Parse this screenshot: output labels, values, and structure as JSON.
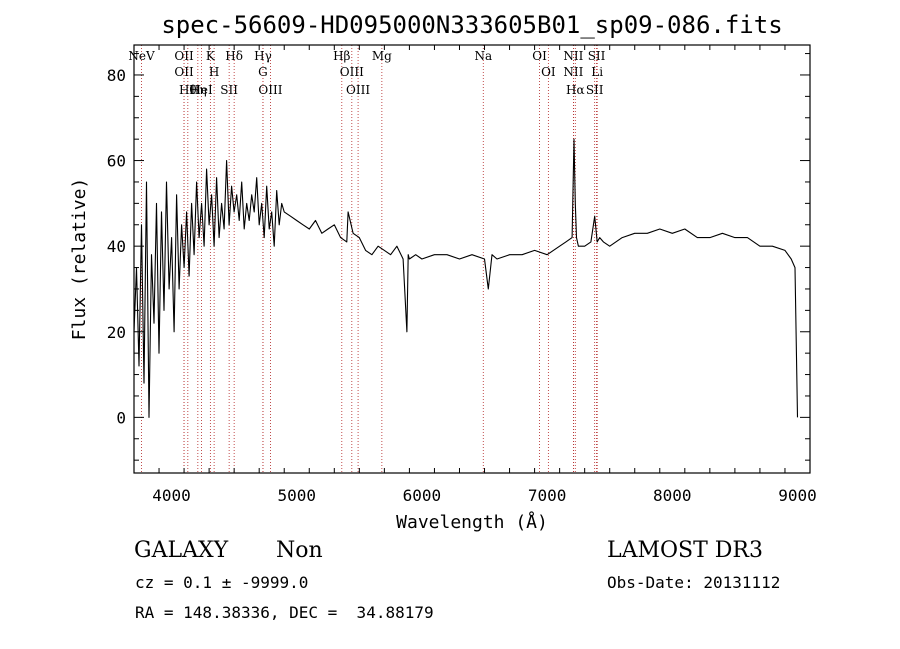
{
  "chart_data": {
    "type": "line",
    "title": "spec-56609-HD095000N333605B01_sp09-086.fits",
    "xlabel": "Wavelength (Å)",
    "ylabel": "Flux (relative)",
    "xlim": [
      3700,
      9100
    ],
    "ylim": [
      -13,
      87
    ],
    "xticks": [
      4000,
      5000,
      6000,
      7000,
      8000,
      9000
    ],
    "xtick_labels": [
      "4000",
      "5000",
      "6000",
      "7000",
      "8000",
      "9000"
    ],
    "yticks": [
      0,
      20,
      40,
      60,
      80
    ],
    "ytick_labels": [
      "0",
      "20",
      "40",
      "60",
      "80"
    ],
    "series": [
      {
        "name": "spectrum",
        "x": [
          3700,
          3720,
          3740,
          3760,
          3780,
          3800,
          3820,
          3840,
          3860,
          3880,
          3900,
          3920,
          3940,
          3960,
          3980,
          4000,
          4020,
          4040,
          4060,
          4080,
          4100,
          4120,
          4140,
          4160,
          4180,
          4200,
          4220,
          4240,
          4260,
          4280,
          4300,
          4320,
          4340,
          4360,
          4380,
          4400,
          4420,
          4440,
          4460,
          4480,
          4500,
          4520,
          4540,
          4560,
          4580,
          4600,
          4620,
          4640,
          4660,
          4680,
          4700,
          4720,
          4740,
          4760,
          4780,
          4800,
          4820,
          4840,
          4860,
          4880,
          4900,
          4950,
          5000,
          5050,
          5100,
          5150,
          5200,
          5250,
          5300,
          5350,
          5400,
          5410,
          5450,
          5500,
          5550,
          5600,
          5650,
          5700,
          5750,
          5800,
          5850,
          5880,
          5890,
          5900,
          5950,
          6000,
          6100,
          6200,
          6300,
          6400,
          6500,
          6530,
          6560,
          6600,
          6700,
          6800,
          6900,
          7000,
          7100,
          7150,
          7200,
          7215,
          7225,
          7235,
          7250,
          7300,
          7350,
          7380,
          7400,
          7420,
          7450,
          7500,
          7600,
          7700,
          7800,
          7900,
          8000,
          8100,
          8200,
          8300,
          8400,
          8500,
          8600,
          8700,
          8800,
          8900,
          8950,
          8980,
          9000
        ],
        "values": [
          20,
          35,
          12,
          45,
          8,
          55,
          0,
          38,
          22,
          50,
          15,
          48,
          25,
          55,
          30,
          42,
          20,
          52,
          30,
          45,
          35,
          48,
          33,
          50,
          38,
          55,
          42,
          50,
          40,
          58,
          45,
          52,
          40,
          56,
          42,
          50,
          44,
          60,
          45,
          54,
          48,
          52,
          46,
          55,
          44,
          50,
          46,
          52,
          48,
          56,
          45,
          50,
          42,
          54,
          44,
          48,
          40,
          53,
          45,
          50,
          48,
          47,
          46,
          45,
          44,
          46,
          43,
          44,
          45,
          42,
          41,
          48,
          43,
          42,
          39,
          38,
          40,
          39,
          38,
          40,
          37,
          20,
          38,
          37,
          38,
          37,
          38,
          38,
          37,
          38,
          37,
          30,
          38,
          37,
          38,
          38,
          39,
          38,
          40,
          41,
          42,
          65,
          50,
          42,
          40,
          40,
          41,
          47,
          41,
          42,
          41,
          40,
          42,
          43,
          43,
          44,
          43,
          44,
          42,
          42,
          43,
          42,
          42,
          40,
          40,
          39,
          37,
          35,
          0
        ]
      }
    ],
    "annotations": [
      {
        "label": "NeV",
        "wavelength": 3760
      },
      {
        "label": "OII",
        "wavelength": 4100
      },
      {
        "label": "OII",
        "wavelength": 4100
      },
      {
        "label": "Hθ",
        "wavelength": 4130
      },
      {
        "label": "Hη",
        "wavelength": 4210
      },
      {
        "label": "HeI",
        "wavelength": 4240
      },
      {
        "label": "K",
        "wavelength": 4310
      },
      {
        "label": "H",
        "wavelength": 4340
      },
      {
        "label": "SII",
        "wavelength": 4460
      },
      {
        "label": "Hδ",
        "wavelength": 4500
      },
      {
        "label": "Hγ",
        "wavelength": 4730
      },
      {
        "label": "G",
        "wavelength": 4730
      },
      {
        "label": "OIII",
        "wavelength": 4790
      },
      {
        "label": "Hβ",
        "wavelength": 5360
      },
      {
        "label": "OIII",
        "wavelength": 5440
      },
      {
        "label": "OIII",
        "wavelength": 5490
      },
      {
        "label": "Mg",
        "wavelength": 5680
      },
      {
        "label": "Na",
        "wavelength": 6490
      },
      {
        "label": "OI",
        "wavelength": 6940
      },
      {
        "label": "OI",
        "wavelength": 7010
      },
      {
        "label": "NII",
        "wavelength": 7210
      },
      {
        "label": "NII",
        "wavelength": 7210
      },
      {
        "label": "Hα",
        "wavelength": 7225
      },
      {
        "label": "SII",
        "wavelength": 7380
      },
      {
        "label": "SII",
        "wavelength": 7395
      },
      {
        "label": "Li",
        "wavelength": 7400
      }
    ]
  },
  "info": {
    "object_class": "GALAXY",
    "subclass": "Non",
    "survey": "LAMOST DR3",
    "cz": "cz = 0.1 ± -9999.0",
    "obs_date": "Obs-Date: 20131112",
    "coords": "RA = 148.38336, DEC =  34.88179"
  }
}
